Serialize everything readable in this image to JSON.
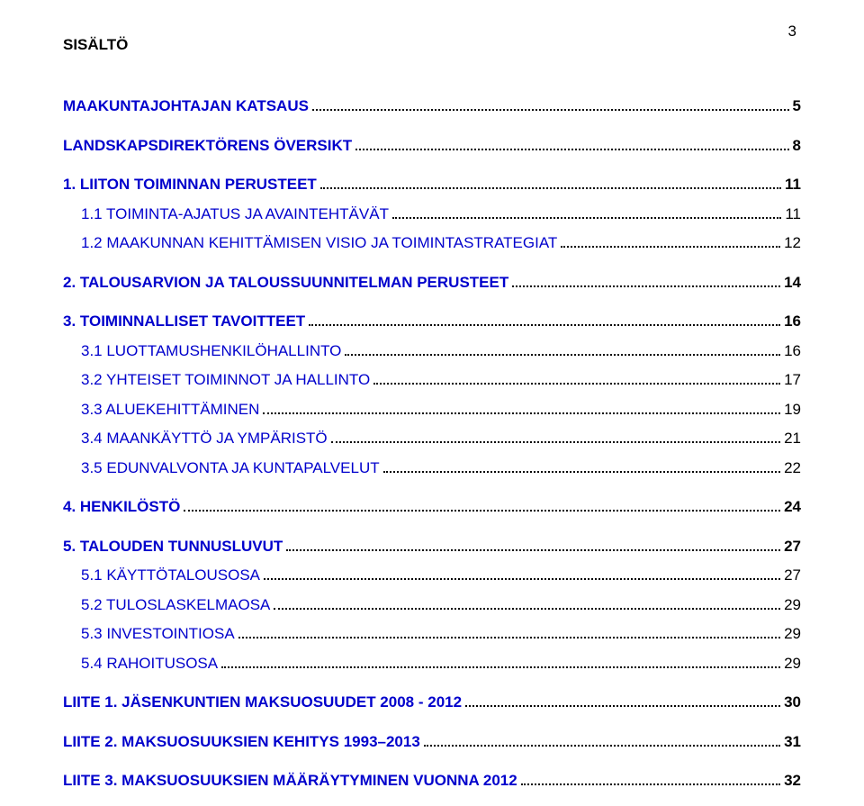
{
  "page_number": "3",
  "header": "SISÄLTÖ",
  "colors": {
    "link": "#0000cc",
    "text": "#000000",
    "background": "#ffffff"
  },
  "typography": {
    "font_family": "Arial, Helvetica, sans-serif",
    "base_size_pt": 13,
    "bold_weight": 700
  },
  "entries": [
    {
      "label": "MAAKUNTAJOHTAJAN KATSAUS",
      "page": "5",
      "level": 0,
      "bold": true,
      "link": true,
      "spaced": false
    },
    {
      "label": "LANDSKAPSDIREKTÖRENS ÖVERSIKT",
      "page": "8",
      "level": 0,
      "bold": true,
      "link": true,
      "spaced": true
    },
    {
      "label": "1. LIITON TOIMINNAN PERUSTEET",
      "page": "11",
      "level": 0,
      "bold": true,
      "link": true,
      "spaced": true
    },
    {
      "label": "1.1 TOIMINTA-AJATUS JA AVAINTEHTÄVÄT",
      "page": "11",
      "level": 1,
      "bold": false,
      "link": true,
      "spaced": false
    },
    {
      "label": "1.2 MAAKUNNAN KEHITTÄMISEN VISIO JA TOIMINTASTRATEGIAT",
      "page": "12",
      "level": 1,
      "bold": false,
      "link": true,
      "spaced": false
    },
    {
      "label": "2. TALOUSARVION JA TALOUSSUUNNITELMAN PERUSTEET",
      "page": "14",
      "level": 0,
      "bold": true,
      "link": true,
      "spaced": true
    },
    {
      "label": "3. TOIMINNALLISET TAVOITTEET",
      "page": "16",
      "level": 0,
      "bold": true,
      "link": true,
      "spaced": true
    },
    {
      "label": "3.1 LUOTTAMUSHENKILÖHALLINTO",
      "page": "16",
      "level": 1,
      "bold": false,
      "link": true,
      "spaced": false
    },
    {
      "label": "3.2 YHTEISET TOIMINNOT JA HALLINTO",
      "page": "17",
      "level": 1,
      "bold": false,
      "link": true,
      "spaced": false
    },
    {
      "label": "3.3 ALUEKEHITTÄMINEN",
      "page": "19",
      "level": 1,
      "bold": false,
      "link": true,
      "spaced": false
    },
    {
      "label": "3.4 MAANKÄYTTÖ JA YMPÄRISTÖ",
      "page": "21",
      "level": 1,
      "bold": false,
      "link": true,
      "spaced": false
    },
    {
      "label": "3.5 EDUNVALVONTA JA KUNTAPALVELUT",
      "page": "22",
      "level": 1,
      "bold": false,
      "link": true,
      "spaced": false
    },
    {
      "label": "4. HENKILÖSTÖ",
      "page": "24",
      "level": 0,
      "bold": true,
      "link": true,
      "spaced": true
    },
    {
      "label": "5. TALOUDEN TUNNUSLUVUT",
      "page": "27",
      "level": 0,
      "bold": true,
      "link": true,
      "spaced": true
    },
    {
      "label": "5.1 KÄYTTÖTALOUSOSA",
      "page": "27",
      "level": 1,
      "bold": false,
      "link": true,
      "spaced": false
    },
    {
      "label": "5.2 TULOSLASKELMAOSA",
      "page": "29",
      "level": 1,
      "bold": false,
      "link": true,
      "spaced": false
    },
    {
      "label": "5.3 INVESTOINTIOSA",
      "page": "29",
      "level": 1,
      "bold": false,
      "link": true,
      "spaced": false
    },
    {
      "label": "5.4 RAHOITUSOSA",
      "page": "29",
      "level": 1,
      "bold": false,
      "link": true,
      "spaced": false
    },
    {
      "label": "LIITE 1. JÄSENKUNTIEN MAKSUOSUUDET 2008 - 2012",
      "page": "30",
      "level": 0,
      "bold": true,
      "link": true,
      "spaced": true
    },
    {
      "label": "LIITE 2. MAKSUOSUUKSIEN KEHITYS 1993–2013",
      "page": "31",
      "level": 0,
      "bold": true,
      "link": true,
      "spaced": true
    },
    {
      "label": "LIITE 3. MAKSUOSUUKSIEN MÄÄRÄYTYMINEN VUONNA 2012",
      "page": "32",
      "level": 0,
      "bold": true,
      "link": true,
      "spaced": true
    }
  ]
}
